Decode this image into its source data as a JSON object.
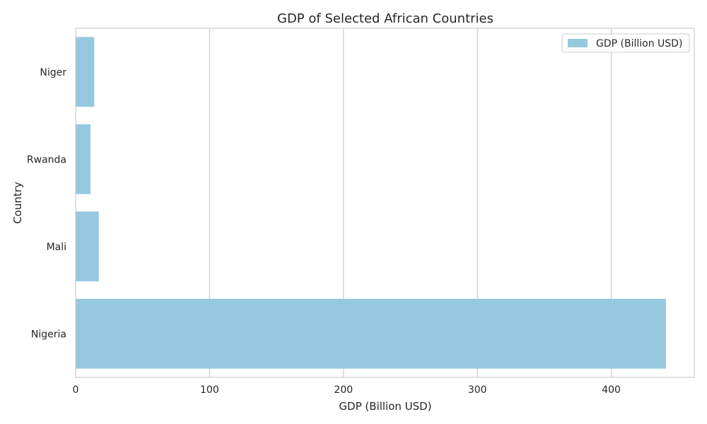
{
  "chart_data": {
    "type": "bar",
    "orientation": "horizontal",
    "title": "GDP of Selected African Countries",
    "xlabel": "GDP (Billion USD)",
    "ylabel": "Country",
    "categories": [
      "Niger",
      "Rwanda",
      "Mali",
      "Nigeria"
    ],
    "series": [
      {
        "name": "GDP (Billion USD)",
        "values": [
          13.9,
          11.1,
          17.3,
          440.8
        ]
      }
    ],
    "xlim": [
      0,
      462
    ],
    "xticks": [
      0,
      100,
      200,
      300,
      400
    ],
    "grid": true,
    "legend_position": "top-right",
    "colors": {
      "bar": "#96c9df",
      "grid": "#cccccc",
      "frame": "#cccccc"
    }
  }
}
